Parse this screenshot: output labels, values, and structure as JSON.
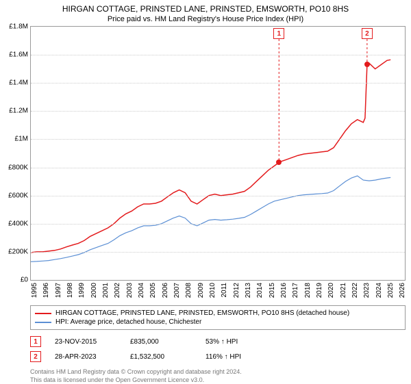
{
  "title": "HIRGAN COTTAGE, PRINSTED LANE, PRINSTED, EMSWORTH, PO10 8HS",
  "subtitle": "Price paid vs. HM Land Registry's House Price Index (HPI)",
  "chart": {
    "type": "line",
    "xlim": [
      1995,
      2026.5
    ],
    "ylim": [
      0,
      1800000
    ],
    "background_color": "#ffffff",
    "grid_color": "#cccccc",
    "yticks": [
      {
        "v": 0,
        "label": "£0"
      },
      {
        "v": 200000,
        "label": "£200K"
      },
      {
        "v": 400000,
        "label": "£400K"
      },
      {
        "v": 600000,
        "label": "£600K"
      },
      {
        "v": 800000,
        "label": "£800K"
      },
      {
        "v": 1000000,
        "label": "£1M"
      },
      {
        "v": 1200000,
        "label": "£1.2M"
      },
      {
        "v": 1400000,
        "label": "£1.4M"
      },
      {
        "v": 1600000,
        "label": "£1.6M"
      },
      {
        "v": 1800000,
        "label": "£1.8M"
      }
    ],
    "xticks": [
      1995,
      1996,
      1997,
      1998,
      1999,
      2000,
      2001,
      2002,
      2003,
      2004,
      2005,
      2006,
      2007,
      2008,
      2009,
      2010,
      2011,
      2012,
      2013,
      2014,
      2015,
      2016,
      2017,
      2018,
      2019,
      2020,
      2021,
      2022,
      2023,
      2024,
      2025,
      2026
    ],
    "series": [
      {
        "name": "property",
        "color": "#e31a1c",
        "width": 1.5,
        "points": [
          [
            1995,
            195000
          ],
          [
            1995.5,
            200000
          ],
          [
            1996,
            200000
          ],
          [
            1996.5,
            205000
          ],
          [
            1997,
            210000
          ],
          [
            1997.5,
            220000
          ],
          [
            1998,
            235000
          ],
          [
            1998.5,
            248000
          ],
          [
            1999,
            260000
          ],
          [
            1999.5,
            280000
          ],
          [
            2000,
            310000
          ],
          [
            2000.5,
            330000
          ],
          [
            2001,
            350000
          ],
          [
            2001.5,
            370000
          ],
          [
            2002,
            400000
          ],
          [
            2002.5,
            440000
          ],
          [
            2003,
            470000
          ],
          [
            2003.5,
            490000
          ],
          [
            2004,
            520000
          ],
          [
            2004.5,
            540000
          ],
          [
            2005,
            540000
          ],
          [
            2005.5,
            545000
          ],
          [
            2006,
            560000
          ],
          [
            2006.5,
            590000
          ],
          [
            2007,
            620000
          ],
          [
            2007.5,
            640000
          ],
          [
            2008,
            620000
          ],
          [
            2008.5,
            560000
          ],
          [
            2009,
            540000
          ],
          [
            2009.5,
            570000
          ],
          [
            2010,
            600000
          ],
          [
            2010.5,
            610000
          ],
          [
            2011,
            600000
          ],
          [
            2011.5,
            605000
          ],
          [
            2012,
            610000
          ],
          [
            2012.5,
            620000
          ],
          [
            2013,
            630000
          ],
          [
            2013.5,
            660000
          ],
          [
            2014,
            700000
          ],
          [
            2014.5,
            740000
          ],
          [
            2015,
            780000
          ],
          [
            2015.5,
            810000
          ],
          [
            2015.9,
            835000
          ],
          [
            2016,
            840000
          ],
          [
            2016.5,
            855000
          ],
          [
            2017,
            870000
          ],
          [
            2017.5,
            885000
          ],
          [
            2018,
            895000
          ],
          [
            2018.5,
            900000
          ],
          [
            2019,
            905000
          ],
          [
            2019.5,
            910000
          ],
          [
            2020,
            915000
          ],
          [
            2020.5,
            940000
          ],
          [
            2021,
            1000000
          ],
          [
            2021.5,
            1060000
          ],
          [
            2022,
            1110000
          ],
          [
            2022.5,
            1140000
          ],
          [
            2023,
            1120000
          ],
          [
            2023.15,
            1150000
          ],
          [
            2023.32,
            1532500
          ],
          [
            2023.5,
            1540000
          ],
          [
            2024,
            1500000
          ],
          [
            2024.5,
            1530000
          ],
          [
            2025,
            1560000
          ],
          [
            2025.3,
            1565000
          ]
        ]
      },
      {
        "name": "hpi",
        "color": "#5b8fd4",
        "width": 1.2,
        "points": [
          [
            1995,
            130000
          ],
          [
            1995.5,
            132000
          ],
          [
            1996,
            135000
          ],
          [
            1996.5,
            138000
          ],
          [
            1997,
            145000
          ],
          [
            1997.5,
            152000
          ],
          [
            1998,
            160000
          ],
          [
            1998.5,
            170000
          ],
          [
            1999,
            180000
          ],
          [
            1999.5,
            195000
          ],
          [
            2000,
            215000
          ],
          [
            2000.5,
            230000
          ],
          [
            2001,
            245000
          ],
          [
            2001.5,
            260000
          ],
          [
            2002,
            285000
          ],
          [
            2002.5,
            315000
          ],
          [
            2003,
            335000
          ],
          [
            2003.5,
            350000
          ],
          [
            2004,
            370000
          ],
          [
            2004.5,
            385000
          ],
          [
            2005,
            385000
          ],
          [
            2005.5,
            388000
          ],
          [
            2006,
            400000
          ],
          [
            2006.5,
            420000
          ],
          [
            2007,
            440000
          ],
          [
            2007.5,
            455000
          ],
          [
            2008,
            440000
          ],
          [
            2008.5,
            400000
          ],
          [
            2009,
            385000
          ],
          [
            2009.5,
            405000
          ],
          [
            2010,
            425000
          ],
          [
            2010.5,
            430000
          ],
          [
            2011,
            425000
          ],
          [
            2011.5,
            428000
          ],
          [
            2012,
            432000
          ],
          [
            2012.5,
            438000
          ],
          [
            2013,
            445000
          ],
          [
            2013.5,
            465000
          ],
          [
            2014,
            490000
          ],
          [
            2014.5,
            515000
          ],
          [
            2015,
            540000
          ],
          [
            2015.5,
            560000
          ],
          [
            2016,
            570000
          ],
          [
            2016.5,
            580000
          ],
          [
            2017,
            590000
          ],
          [
            2017.5,
            600000
          ],
          [
            2018,
            605000
          ],
          [
            2018.5,
            608000
          ],
          [
            2019,
            611000
          ],
          [
            2019.5,
            614000
          ],
          [
            2020,
            618000
          ],
          [
            2020.5,
            635000
          ],
          [
            2021,
            668000
          ],
          [
            2021.5,
            700000
          ],
          [
            2022,
            725000
          ],
          [
            2022.5,
            740000
          ],
          [
            2023,
            710000
          ],
          [
            2023.5,
            705000
          ],
          [
            2024,
            710000
          ],
          [
            2024.5,
            718000
          ],
          [
            2025,
            725000
          ],
          [
            2025.3,
            728000
          ]
        ]
      }
    ],
    "sale_markers": [
      {
        "n": "1",
        "x": 2015.9,
        "y": 835000
      },
      {
        "n": "2",
        "x": 2023.32,
        "y": 1532500
      }
    ]
  },
  "legend": {
    "items": [
      {
        "color": "#e31a1c",
        "label": "HIRGAN COTTAGE, PRINSTED LANE, PRINSTED, EMSWORTH, PO10 8HS (detached house)"
      },
      {
        "color": "#5b8fd4",
        "label": "HPI: Average price, detached house, Chichester"
      }
    ]
  },
  "annotations": [
    {
      "n": "1",
      "date": "23-NOV-2015",
      "price": "£835,000",
      "hpi": "53% ↑ HPI"
    },
    {
      "n": "2",
      "date": "28-APR-2023",
      "price": "£1,532,500",
      "hpi": "116% ↑ HPI"
    }
  ],
  "footer": {
    "line1": "Contains HM Land Registry data © Crown copyright and database right 2024.",
    "line2": "This data is licensed under the Open Government Licence v3.0."
  }
}
